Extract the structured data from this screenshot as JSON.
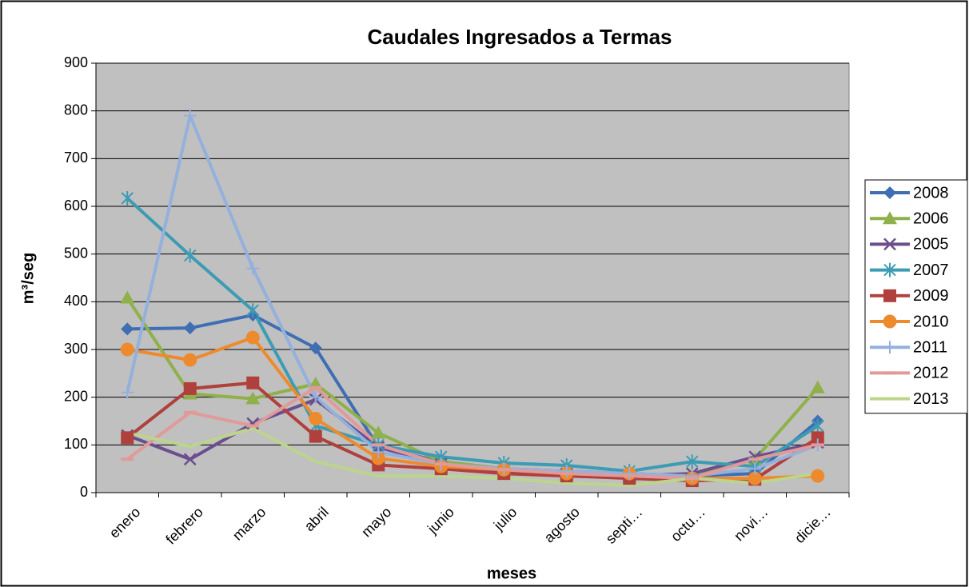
{
  "chart_data": {
    "type": "line",
    "title": "Caudales Ingresados a Termas",
    "x_label": "meses",
    "y_label": "m³/seg",
    "categories": [
      "enero",
      "febrero",
      "marzo",
      "abril",
      "mayo",
      "junio",
      "julio",
      "agosto",
      "septi…",
      "octu…",
      "novi…",
      "dicie…"
    ],
    "ylim": [
      0,
      900
    ],
    "yticks": [
      0,
      100,
      200,
      300,
      400,
      500,
      600,
      700,
      800,
      900
    ],
    "grid": true,
    "legend": "right",
    "series": [
      {
        "name": "2008",
        "color": "#3F6EB3",
        "marker": "diamond",
        "values": [
          343,
          345,
          372,
          303,
          95,
          65,
          50,
          45,
          40,
          35,
          40,
          150
        ]
      },
      {
        "name": "2006",
        "color": "#8FB04A",
        "marker": "triangle",
        "values": [
          408,
          207,
          197,
          228,
          125,
          65,
          50,
          40,
          35,
          35,
          70,
          220
        ]
      },
      {
        "name": "2005",
        "color": "#6B4E8E",
        "marker": "x",
        "values": [
          120,
          70,
          145,
          195,
          95,
          60,
          45,
          40,
          35,
          40,
          75,
          105
        ]
      },
      {
        "name": "2007",
        "color": "#3C9CB4",
        "marker": "star",
        "values": [
          617,
          497,
          382,
          140,
          100,
          75,
          62,
          57,
          45,
          65,
          55,
          140
        ]
      },
      {
        "name": "2009",
        "color": "#B0403C",
        "marker": "square",
        "values": [
          115,
          218,
          230,
          118,
          58,
          50,
          40,
          35,
          30,
          25,
          28,
          115
        ]
      },
      {
        "name": "2010",
        "color": "#EE8A2E",
        "marker": "circle",
        "values": [
          300,
          278,
          325,
          155,
          72,
          55,
          48,
          40,
          40,
          30,
          30,
          35
        ]
      },
      {
        "name": "2011",
        "color": "#94B0DD",
        "marker": "plus",
        "values": [
          210,
          790,
          470,
          200,
          85,
          60,
          50,
          45,
          40,
          35,
          50,
          100
        ]
      },
      {
        "name": "2012",
        "color": "#E09A9A",
        "marker": "dash",
        "values": [
          70,
          168,
          140,
          220,
          100,
          60,
          48,
          40,
          35,
          30,
          70,
          100
        ]
      },
      {
        "name": "2013",
        "color": "#BCD58C",
        "marker": "none",
        "values": [
          125,
          97,
          135,
          65,
          35,
          35,
          30,
          20,
          15,
          30,
          20,
          40
        ]
      }
    ]
  }
}
